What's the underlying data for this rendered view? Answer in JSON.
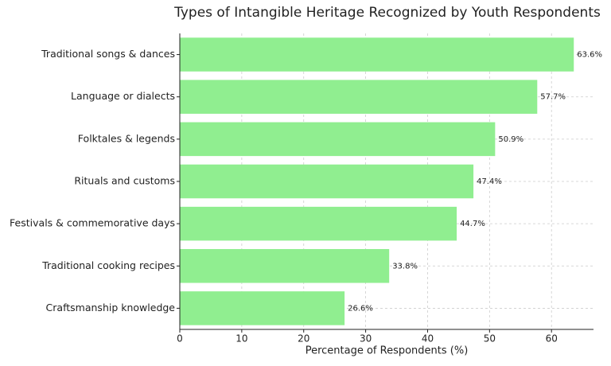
{
  "chart_data": {
    "type": "barh",
    "title": "Types of Intangible Heritage Recognized by Youth Respondents",
    "x_label": "Percentage of Respondents (%)",
    "categories": [
      "Traditional songs & dances",
      "Language or dialects",
      "Folktales & legends",
      "Rituals and customs",
      "Festivals & commemorative days",
      "Traditional cooking recipes",
      "Craftsmanship knowledge"
    ],
    "values": [
      63.6,
      57.7,
      50.9,
      47.4,
      44.7,
      33.8,
      26.6
    ],
    "value_labels": [
      "63.6%",
      "57.7%",
      "50.9%",
      "47.4%",
      "44.7%",
      "33.8%",
      "26.6%"
    ],
    "color": "#90ee90",
    "xlim": [
      0,
      66.78
    ],
    "xticks": [
      0,
      10,
      20,
      30,
      40,
      50,
      60
    ],
    "grid": true
  }
}
